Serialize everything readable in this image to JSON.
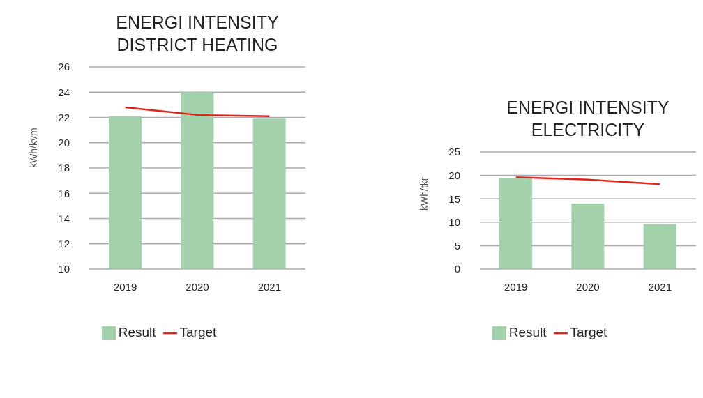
{
  "chart_data": [
    {
      "type": "bar",
      "title": "ENERGI INTENSITY DISTRICT HEATING",
      "ylabel": "kWh/kvm",
      "categories": [
        "2019",
        "2020",
        "2021"
      ],
      "series": [
        {
          "name": "Result",
          "color": "#a3d1ab",
          "values": [
            22.1,
            24.0,
            21.9
          ]
        },
        {
          "name": "Target",
          "type": "line",
          "color": "#e3241b",
          "values": [
            22.8,
            22.2,
            22.1
          ]
        }
      ],
      "ylim": [
        10,
        26
      ],
      "yticks": [
        10,
        12,
        14,
        16,
        18,
        20,
        22,
        24,
        26
      ],
      "grid": "y",
      "legend": "bottom",
      "marker": "none"
    },
    {
      "type": "bar",
      "title": "ENERGI INTENSITY ELECTRICITY",
      "ylabel": "kWh/tkr",
      "categories": [
        "2019",
        "2020",
        "2021"
      ],
      "series": [
        {
          "name": "Result",
          "color": "#a3d1ab",
          "values": [
            19.4,
            14.0,
            9.6
          ]
        },
        {
          "name": "Target",
          "type": "line",
          "color": "#e3241b",
          "values": [
            19.6,
            19.1,
            18.1
          ]
        }
      ],
      "ylim": [
        0,
        25
      ],
      "yticks": [
        0,
        5,
        10,
        15,
        20,
        25
      ],
      "grid": "y",
      "legend": "bottom",
      "marker": "none"
    }
  ]
}
